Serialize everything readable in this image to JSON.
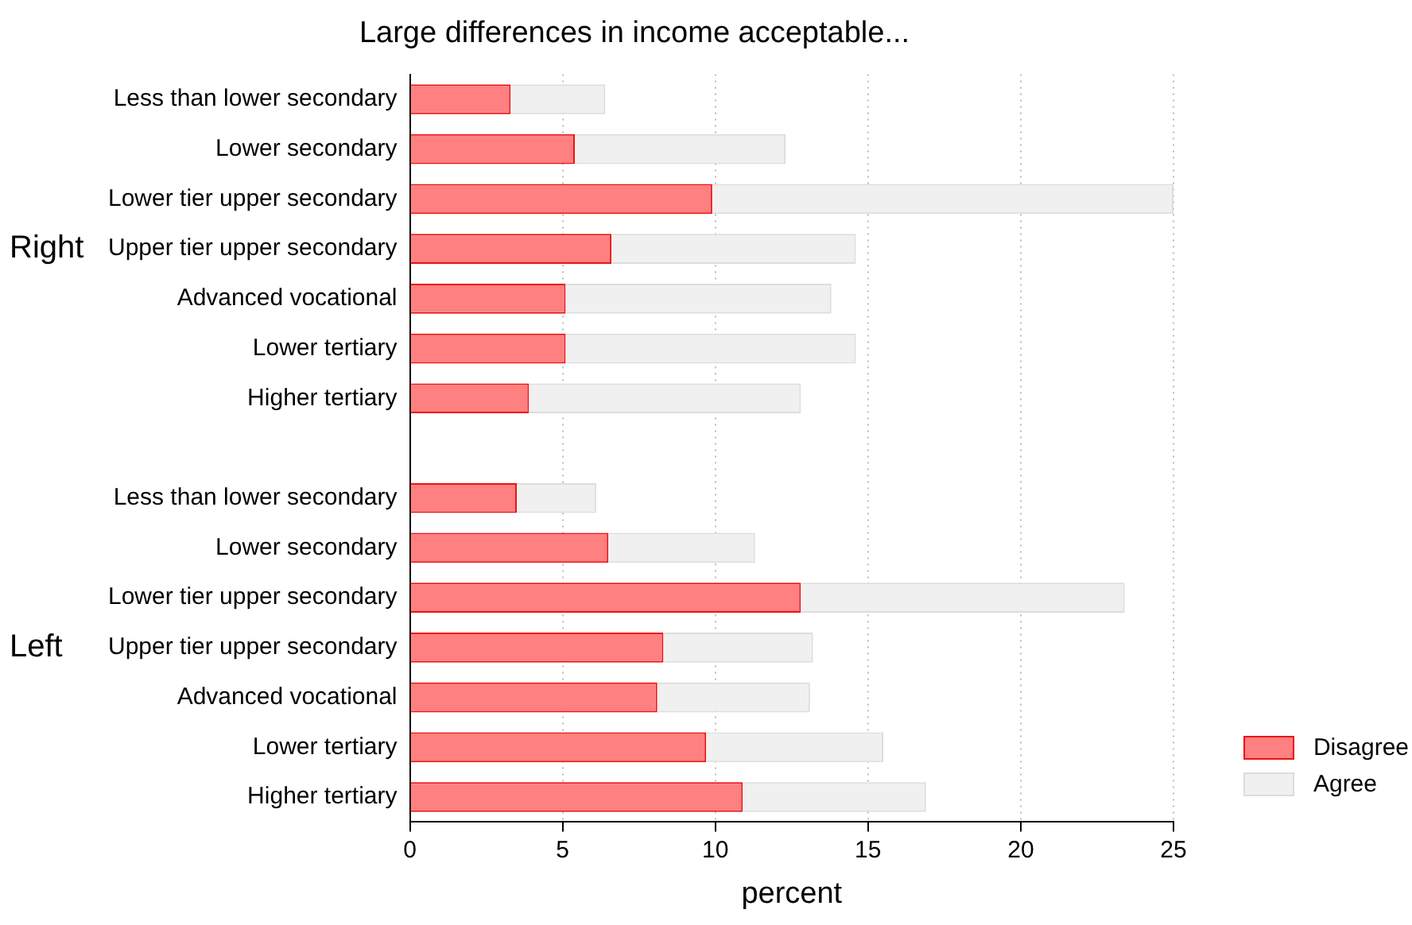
{
  "chart_data": {
    "type": "bar",
    "orientation": "horizontal",
    "stacked": true,
    "title": "Large differences in income acceptable...",
    "xlabel": "percent",
    "categories": [
      "Less than lower secondary",
      "Lower secondary",
      "Lower tier upper secondary",
      "Upper tier upper secondary",
      "Advanced vocational",
      "Lower tertiary",
      "Higher tertiary",
      null,
      "Less than lower secondary",
      "Lower secondary",
      "Lower tier upper secondary",
      "Upper tier upper secondary",
      "Advanced vocational",
      "Lower tertiary",
      "Higher tertiary"
    ],
    "series": [
      {
        "name": "Disagree",
        "color": "#ff8080",
        "values": [
          3.3,
          5.4,
          9.9,
          6.6,
          5.1,
          5.1,
          3.9,
          null,
          3.5,
          6.5,
          12.8,
          8.3,
          8.1,
          9.7,
          10.9
        ]
      },
      {
        "name": "Agree",
        "color": "#f0f0f0",
        "values": [
          3.1,
          6.9,
          15.1,
          8.0,
          8.7,
          9.5,
          8.9,
          null,
          2.6,
          4.8,
          10.6,
          4.9,
          5.0,
          5.8,
          6.0
        ]
      }
    ],
    "annotations": [
      "Right",
      "Left"
    ],
    "xlim": [
      0,
      25
    ],
    "xticks": [
      0,
      5,
      10,
      15,
      20,
      25
    ],
    "grid": "x",
    "legend": "bottom right"
  }
}
